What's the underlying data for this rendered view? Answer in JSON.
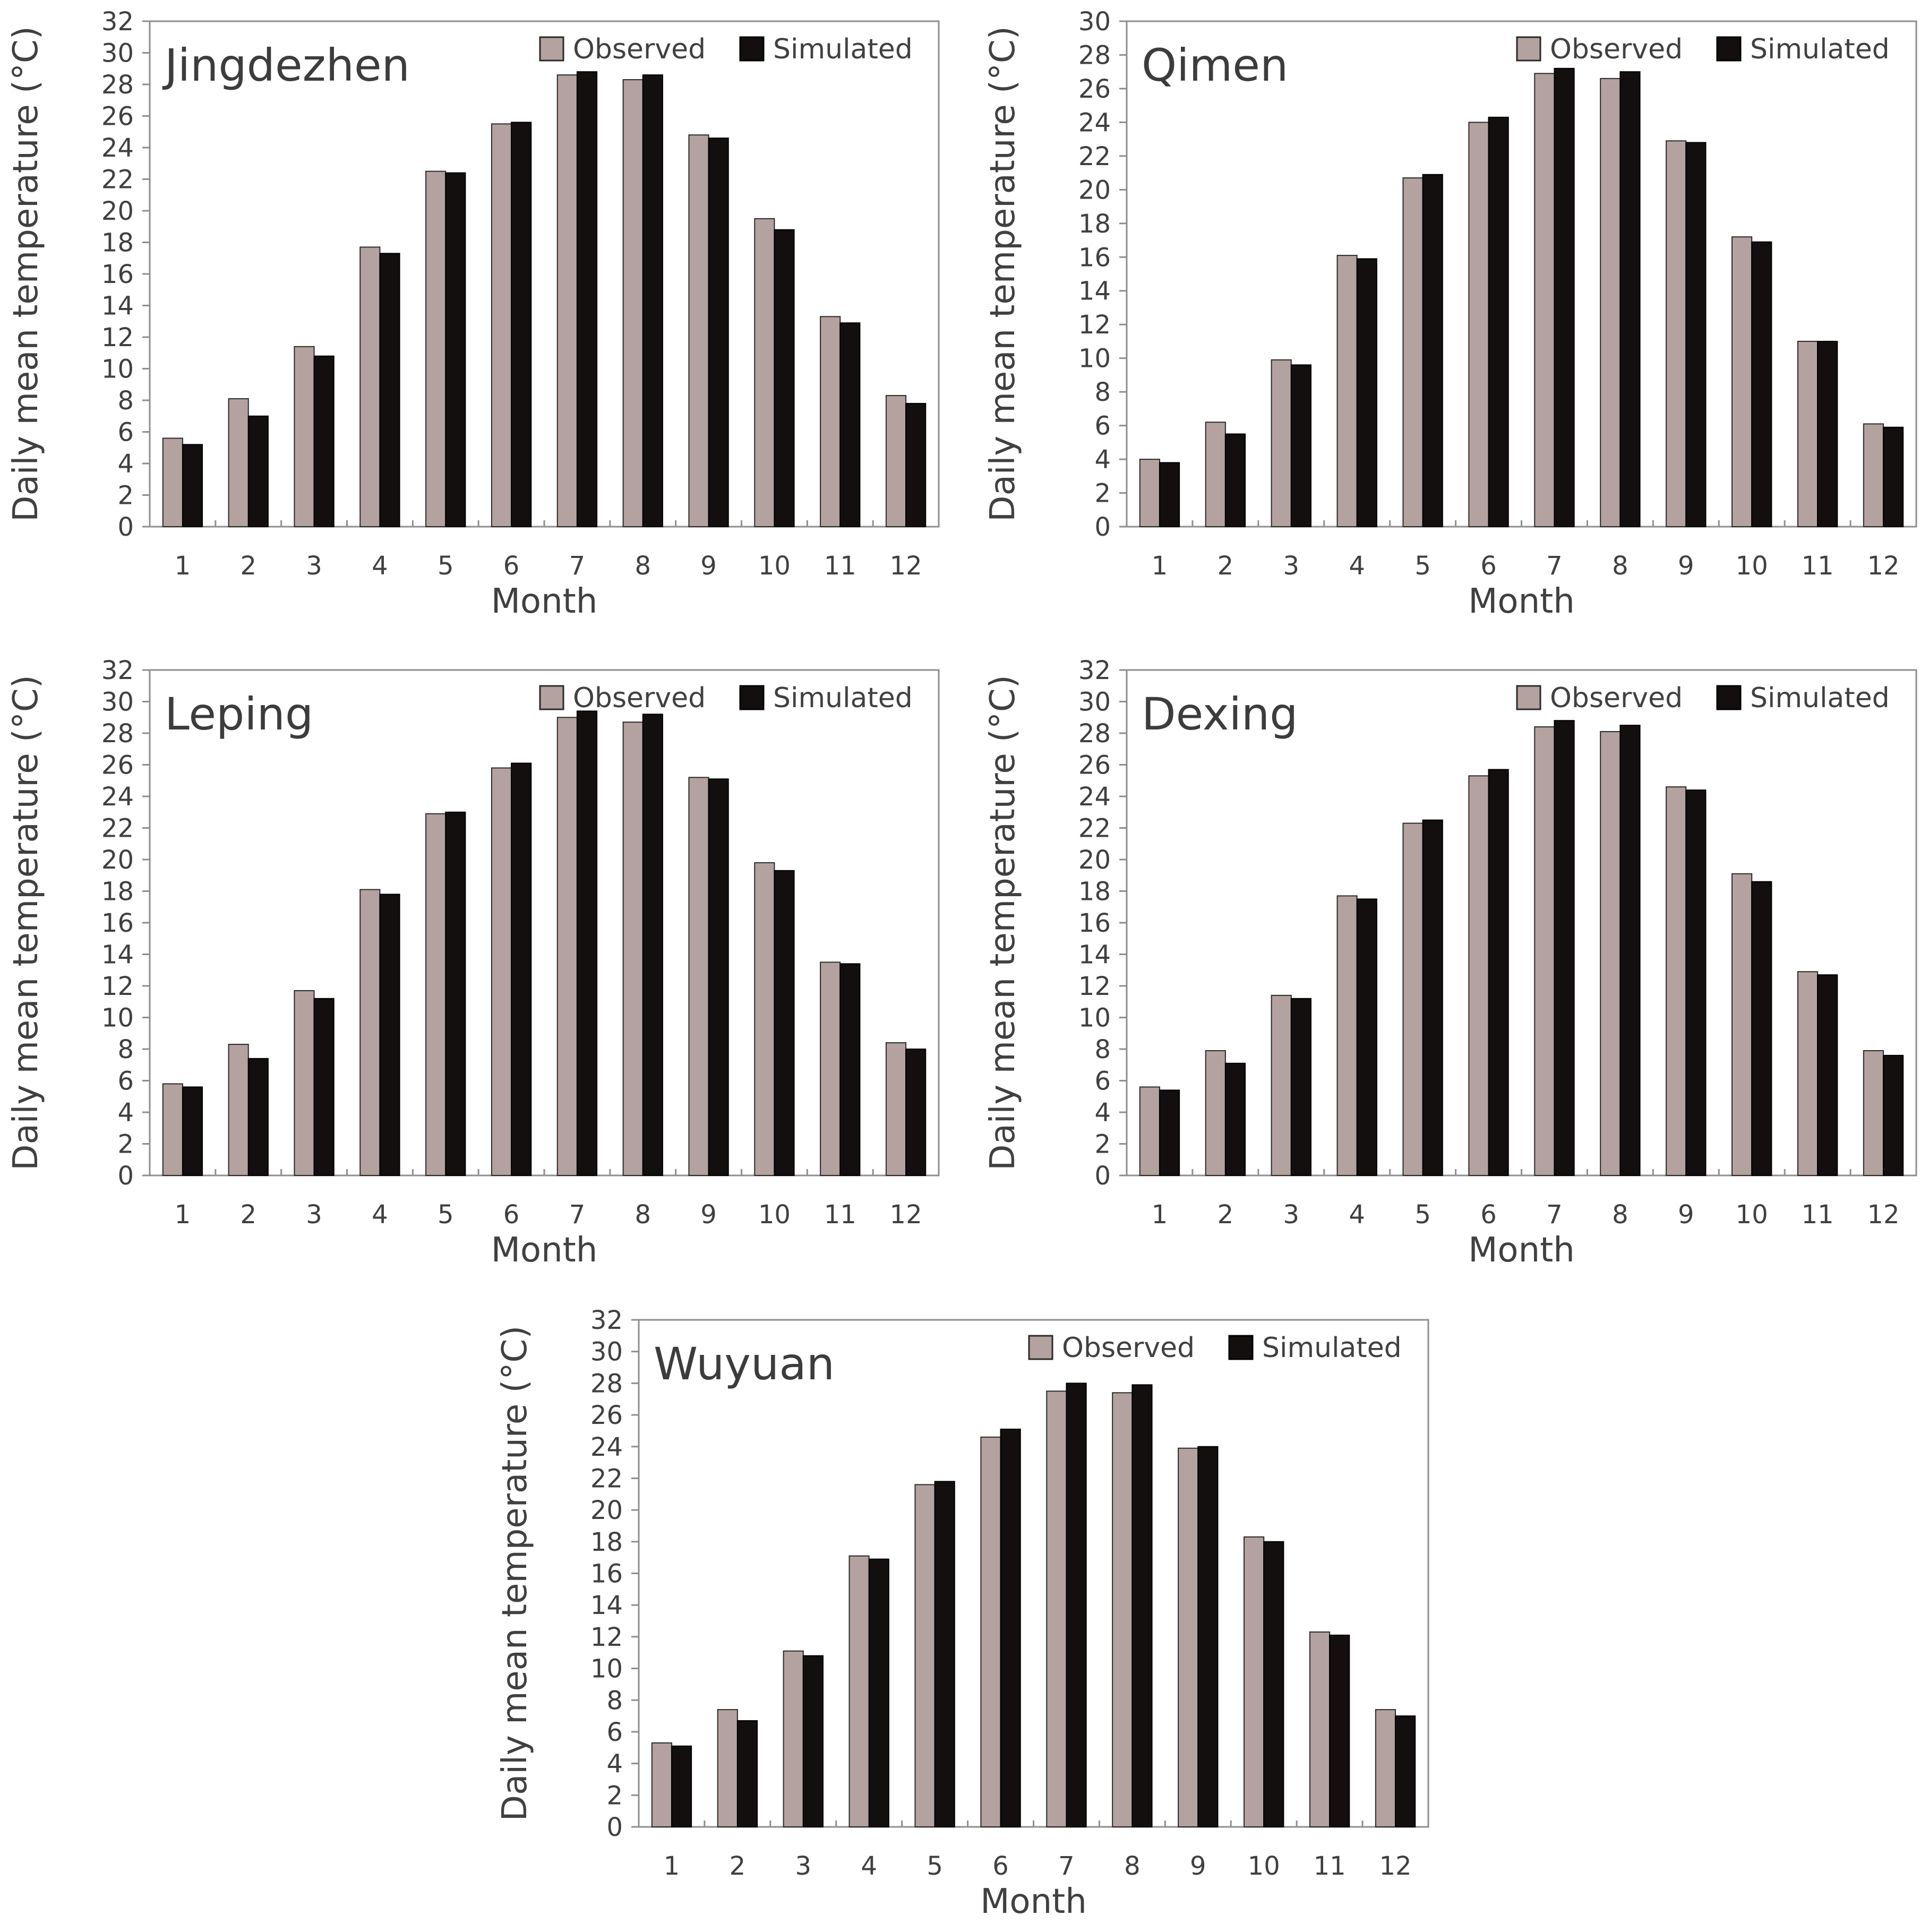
{
  "colors": {
    "observed": "#b3a29f",
    "simulated": "#130f0f",
    "frame": "#8e8e8e",
    "text": "#404040"
  },
  "chart_data": [
    {
      "type": "bar",
      "title": "Jingdezhen",
      "xlabel": "Month",
      "ylabel": "Daily mean temperature (°C)",
      "ylim": [
        0,
        32
      ],
      "yticks": [
        "0",
        "2",
        "4",
        "6",
        "8",
        "10",
        "12",
        "14",
        "16",
        "18",
        "20",
        "22",
        "24",
        "26",
        "28",
        "30",
        "32"
      ],
      "categories": [
        "1",
        "2",
        "3",
        "4",
        "5",
        "6",
        "7",
        "8",
        "9",
        "10",
        "11",
        "12"
      ],
      "legend_position": "top-right",
      "series": [
        {
          "name": "Observed",
          "values": [
            5.6,
            8.1,
            11.4,
            17.7,
            22.5,
            25.5,
            28.6,
            28.3,
            24.8,
            19.5,
            13.3,
            8.3
          ]
        },
        {
          "name": "Simulated",
          "values": [
            5.2,
            7.0,
            10.8,
            17.3,
            22.4,
            25.6,
            28.8,
            28.6,
            24.6,
            18.8,
            12.9,
            7.8
          ]
        }
      ]
    },
    {
      "type": "bar",
      "title": "Qimen",
      "xlabel": "Month",
      "ylabel": "Daily mean temperature (°C)",
      "ylim": [
        0,
        30
      ],
      "yticks": [
        "0",
        "2",
        "4",
        "6",
        "8",
        "10",
        "12",
        "14",
        "16",
        "18",
        "20",
        "22",
        "24",
        "26",
        "28",
        "30"
      ],
      "categories": [
        "1",
        "2",
        "3",
        "4",
        "5",
        "6",
        "7",
        "8",
        "9",
        "10",
        "11",
        "12"
      ],
      "legend_position": "top-right",
      "series": [
        {
          "name": "Observed",
          "values": [
            4.0,
            6.2,
            9.9,
            16.1,
            20.7,
            24.0,
            26.9,
            26.6,
            22.9,
            17.2,
            11.0,
            6.1
          ]
        },
        {
          "name": "Simulated",
          "values": [
            3.8,
            5.5,
            9.6,
            15.9,
            20.9,
            24.3,
            27.2,
            27.0,
            22.8,
            16.9,
            11.0,
            5.9
          ]
        }
      ]
    },
    {
      "type": "bar",
      "title": "Leping",
      "xlabel": "Month",
      "ylabel": "Daily mean temperature (°C)",
      "ylim": [
        0,
        32
      ],
      "yticks": [
        "0",
        "2",
        "4",
        "6",
        "8",
        "10",
        "12",
        "14",
        "16",
        "18",
        "20",
        "22",
        "24",
        "26",
        "28",
        "30",
        "32"
      ],
      "categories": [
        "1",
        "2",
        "3",
        "4",
        "5",
        "6",
        "7",
        "8",
        "9",
        "10",
        "11",
        "12"
      ],
      "legend_position": "top-right",
      "series": [
        {
          "name": "Observed",
          "values": [
            5.8,
            8.3,
            11.7,
            18.1,
            22.9,
            25.8,
            29.0,
            28.7,
            25.2,
            19.8,
            13.5,
            8.4
          ]
        },
        {
          "name": "Simulated",
          "values": [
            5.6,
            7.4,
            11.2,
            17.8,
            23.0,
            26.1,
            29.4,
            29.2,
            25.1,
            19.3,
            13.4,
            8.0
          ]
        }
      ]
    },
    {
      "type": "bar",
      "title": "Dexing",
      "xlabel": "Month",
      "ylabel": "Daily mean temperature (°C)",
      "ylim": [
        0,
        32
      ],
      "yticks": [
        "0",
        "2",
        "4",
        "6",
        "8",
        "10",
        "12",
        "14",
        "16",
        "18",
        "20",
        "22",
        "24",
        "26",
        "28",
        "30",
        "32"
      ],
      "categories": [
        "1",
        "2",
        "3",
        "4",
        "5",
        "6",
        "7",
        "8",
        "9",
        "10",
        "11",
        "12"
      ],
      "legend_position": "top-right",
      "series": [
        {
          "name": "Observed",
          "values": [
            5.6,
            7.9,
            11.4,
            17.7,
            22.3,
            25.3,
            28.4,
            28.1,
            24.6,
            19.1,
            12.9,
            7.9
          ]
        },
        {
          "name": "Simulated",
          "values": [
            5.4,
            7.1,
            11.2,
            17.5,
            22.5,
            25.7,
            28.8,
            28.5,
            24.4,
            18.6,
            12.7,
            7.6
          ]
        }
      ]
    },
    {
      "type": "bar",
      "title": "Wuyuan",
      "xlabel": "Month",
      "ylabel": "Daily mean temperature (°C)",
      "ylim": [
        0,
        32
      ],
      "yticks": [
        "0",
        "2",
        "4",
        "6",
        "8",
        "10",
        "12",
        "14",
        "16",
        "18",
        "20",
        "22",
        "24",
        "26",
        "28",
        "30",
        "32"
      ],
      "categories": [
        "1",
        "2",
        "3",
        "4",
        "5",
        "6",
        "7",
        "8",
        "9",
        "10",
        "11",
        "12"
      ],
      "legend_position": "top-right",
      "series": [
        {
          "name": "Observed",
          "values": [
            5.3,
            7.4,
            11.1,
            17.1,
            21.6,
            24.6,
            27.5,
            27.4,
            23.9,
            18.3,
            12.3,
            7.4
          ]
        },
        {
          "name": "Simulated",
          "values": [
            5.1,
            6.7,
            10.8,
            16.9,
            21.8,
            25.1,
            28.0,
            27.9,
            24.0,
            18.0,
            12.1,
            7.0
          ]
        }
      ]
    }
  ]
}
